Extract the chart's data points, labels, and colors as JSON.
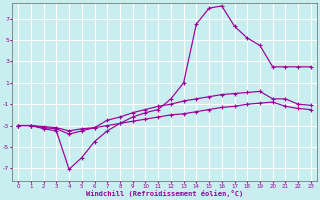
{
  "background_color": "#c8eef0",
  "grid_color": "#ffffff",
  "line_color": "#990099",
  "xlabel": "Windchill (Refroidissement éolien,°C)",
  "yticks": [
    7,
    5,
    3,
    1,
    -1,
    -3,
    -5,
    -7
  ],
  "xticks": [
    0,
    1,
    2,
    3,
    4,
    5,
    6,
    7,
    8,
    9,
    10,
    11,
    12,
    13,
    14,
    15,
    16,
    17,
    18,
    19,
    20,
    21,
    22,
    23
  ],
  "xlim": [
    -0.5,
    23.5
  ],
  "ylim": [
    -8.2,
    8.5
  ],
  "line1_x": [
    0,
    1,
    2,
    3,
    4,
    5,
    6,
    7,
    8,
    9,
    10,
    11,
    12,
    13,
    14,
    15,
    16,
    17,
    18,
    19,
    20,
    21,
    22,
    23
  ],
  "line1_y": [
    -3.0,
    -3.0,
    -3.3,
    -3.5,
    -7.1,
    -6.0,
    -4.5,
    -3.5,
    -2.8,
    -2.2,
    -1.8,
    -1.5,
    -0.5,
    1.0,
    6.5,
    8.0,
    8.2,
    6.3,
    5.2,
    4.5,
    2.5,
    2.5,
    2.5,
    2.5
  ],
  "line2_x": [
    0,
    1,
    2,
    3,
    4,
    5,
    6,
    7,
    8,
    9,
    10,
    11,
    12,
    13,
    14,
    15,
    16,
    17,
    18,
    19,
    20,
    21,
    22,
    23
  ],
  "line2_y": [
    -3.0,
    -3.0,
    -3.2,
    -3.3,
    -3.8,
    -3.5,
    -3.2,
    -2.5,
    -2.2,
    -1.8,
    -1.5,
    -1.2,
    -1.0,
    -0.7,
    -0.5,
    -0.3,
    -0.1,
    0.0,
    0.1,
    0.2,
    -0.5,
    -0.5,
    -1.0,
    -1.1
  ],
  "line3_x": [
    0,
    1,
    2,
    3,
    4,
    5,
    6,
    7,
    8,
    9,
    10,
    11,
    12,
    13,
    14,
    15,
    16,
    17,
    18,
    19,
    20,
    21,
    22,
    23
  ],
  "line3_y": [
    -3.0,
    -3.0,
    -3.1,
    -3.2,
    -3.5,
    -3.3,
    -3.2,
    -3.0,
    -2.8,
    -2.6,
    -2.4,
    -2.2,
    -2.0,
    -1.9,
    -1.7,
    -1.5,
    -1.3,
    -1.2,
    -1.0,
    -0.9,
    -0.8,
    -1.2,
    -1.4,
    -1.5
  ]
}
